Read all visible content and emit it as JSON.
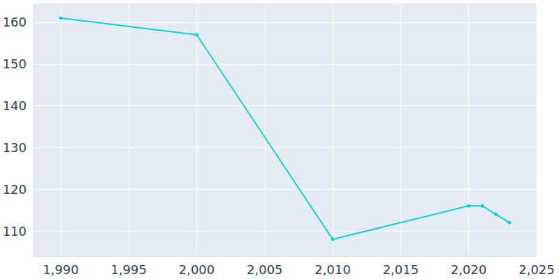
{
  "chart_data": {
    "type": "line",
    "x": [
      1990,
      2000,
      2010,
      2020,
      2021,
      2022,
      2023
    ],
    "values": [
      161,
      157,
      108,
      116,
      116,
      114,
      112
    ],
    "color": "#00ced1",
    "marker": "circle",
    "xlim": [
      1988,
      2025
    ],
    "xticks": [
      1990,
      1995,
      2000,
      2005,
      2010,
      2015,
      2020,
      2025
    ],
    "ylim": [
      104,
      164.5
    ],
    "yticks": [
      110,
      120,
      130,
      140,
      150,
      160
    ],
    "grid": true
  }
}
